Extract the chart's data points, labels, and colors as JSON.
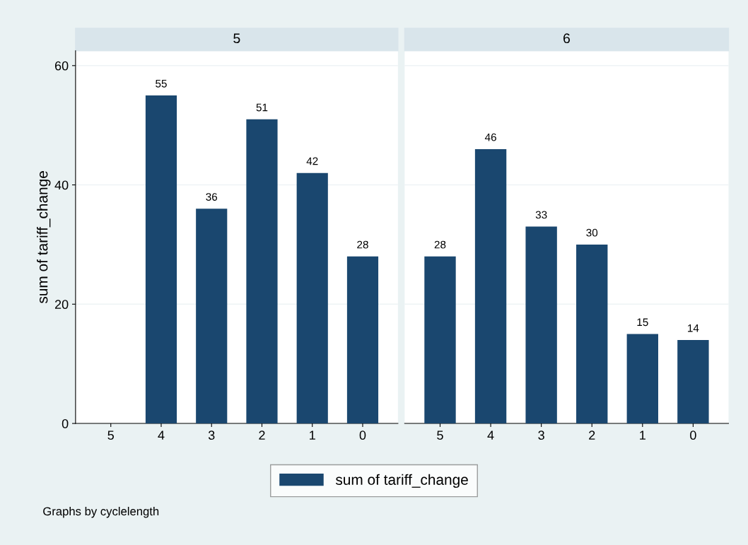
{
  "chart_data": [
    {
      "type": "bar",
      "title": "5",
      "ylabel": "sum of tariff_change",
      "categories": [
        "5",
        "4",
        "3",
        "2",
        "1",
        "0"
      ],
      "series": [
        {
          "name": "sum of tariff_change",
          "color": "#1a476f",
          "values": [
            null,
            55,
            36,
            51,
            42,
            28
          ]
        }
      ],
      "ylim": [
        0,
        62.5
      ],
      "yticks": [
        0,
        20,
        40,
        60
      ],
      "grid": "y",
      "data_labels": true,
      "legend": "bottom",
      "annotations": [
        "Graphs by cyclelength"
      ]
    },
    {
      "type": "bar",
      "title": "6",
      "categories": [
        "5",
        "4",
        "3",
        "2",
        "1",
        "0"
      ],
      "series": [
        {
          "color": "#1a476f",
          "values": [
            28,
            46,
            33,
            30,
            15,
            14
          ]
        }
      ],
      "ylim": [
        0,
        62.5
      ],
      "yticks": [
        0,
        20,
        40,
        60
      ],
      "grid": "y",
      "data_labels": true,
      "tick_labels": "x"
    }
  ]
}
